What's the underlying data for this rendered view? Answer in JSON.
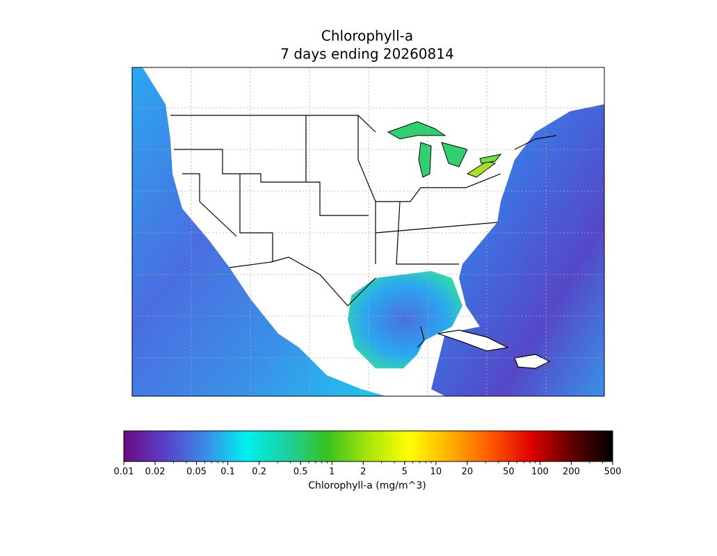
{
  "chart_data": {
    "type": "map",
    "title": "Chlorophyll-a",
    "subtitle": "7 days ending 20260814",
    "colorbar": {
      "label": "Chlorophyll-a (mg/m^3)",
      "scale": "log",
      "lim": [
        0.01,
        500
      ],
      "ticks": [
        0.01,
        0.02,
        0.05,
        0.1,
        0.2,
        0.5,
        1,
        2,
        5,
        10,
        20,
        50,
        100,
        200,
        500
      ],
      "colors": [
        "#6a0a80",
        "#5a3fc8",
        "#3a8ae8",
        "#00f0f0",
        "#1ad1a0",
        "#36c21e",
        "#a8e40a",
        "#ffff00",
        "#ffb000",
        "#ff5a00",
        "#e00000",
        "#600000",
        "#000000"
      ]
    }
  }
}
